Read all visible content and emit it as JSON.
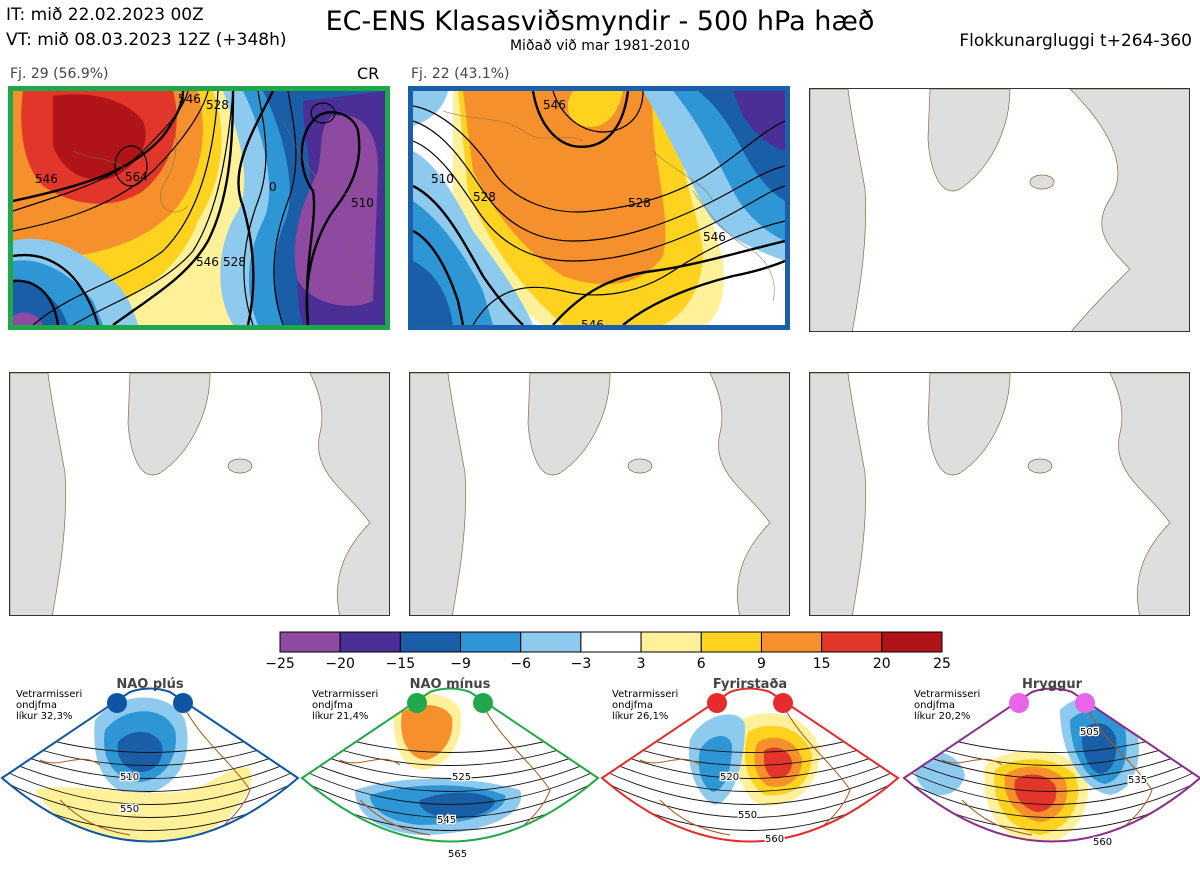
{
  "header": {
    "it_line": "IT: mið 22.02.2023 00Z",
    "vt_line": "VT: mið 08.03.2023 12Z  (+348h)",
    "title": "EC-ENS Klasasviðsmyndir - 500 hPa hæð",
    "subtitle": "Miðað við mar 1981-2010",
    "window": "Flokkunargluggi t+264-360"
  },
  "panels": [
    {
      "label": "Fj. 29 (56.9%)",
      "tag": "CR",
      "border_color": "#22a64b",
      "contours": [
        "546",
        "564",
        "510",
        "0",
        "546",
        "528",
        "528",
        "546"
      ]
    },
    {
      "label": "Fj. 22 (43.1%)",
      "border_color": "#1d5ea8",
      "contours": [
        "510",
        "528",
        "528",
        "546",
        "546",
        "546",
        "54"
      ]
    }
  ],
  "colorbar": {
    "ticks": [
      "−25",
      "−20",
      "−15",
      "−9",
      "−6",
      "−3",
      "3",
      "6",
      "9",
      "15",
      "20",
      "25"
    ],
    "colors": [
      "#8e4aa1",
      "#4b2f96",
      "#1a5ea8",
      "#2f96d6",
      "#8ecaed",
      "#ffffff",
      "#fff19a",
      "#fdd320",
      "#f5902c",
      "#e3362a",
      "#b01418"
    ]
  },
  "regimes": [
    {
      "name": "NAO plús",
      "stat_l1": "Vetrarmisseri",
      "stat_l2": "ondjfma",
      "stat_l3": "líkur 32,3%",
      "color": "#0e56a3",
      "contours": [
        "510",
        "550"
      ]
    },
    {
      "name": "NAO mínus",
      "stat_l1": "Vetrarmisseri",
      "stat_l2": "ondjfma",
      "stat_l3": "líkur 21,4%",
      "color": "#21a84a",
      "contours": [
        "525",
        "545",
        "565"
      ]
    },
    {
      "name": "Fyrirstaða",
      "stat_l1": "Vetrarmisseri",
      "stat_l2": "ondjfma",
      "stat_l3": "líkur 26,1%",
      "color": "#e52b2b",
      "contours": [
        "520",
        "550",
        "560"
      ]
    },
    {
      "name": "Hryggur",
      "stat_l1": "Vetrarmisseri",
      "stat_l2": "ondjfma",
      "stat_l3": "líkur 20,2%",
      "color": "#8c2c8c",
      "dot_color": "#e864e8",
      "contours": [
        "505",
        "535",
        "560"
      ]
    }
  ]
}
